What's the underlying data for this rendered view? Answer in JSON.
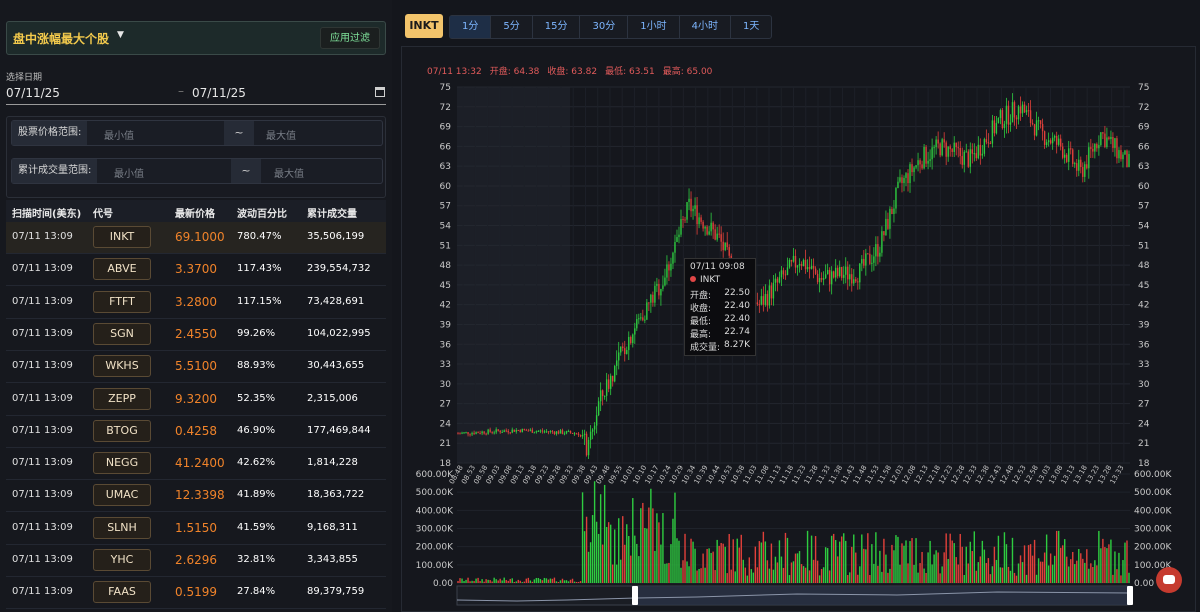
{
  "filter": {
    "title": "盘中涨幅最大个股",
    "apply_label": "应用过滤"
  },
  "date": {
    "label": "选择日期",
    "start": "07/11/25",
    "separator": "–",
    "end": "07/11/25"
  },
  "price_range": {
    "label": "股票价格范围:",
    "min_placeholder": "最小值",
    "tilde": "~",
    "max_placeholder": "最大值"
  },
  "volume_range": {
    "label": "累计成交量范围:",
    "min_placeholder": "最小值",
    "tilde": "~",
    "max_placeholder": "最大值"
  },
  "table": {
    "headers": [
      "扫描时间(美东)",
      "代号",
      "最新价格",
      "波动百分比",
      "累计成交量"
    ],
    "rows": [
      {
        "time": "07/11 13:09",
        "symbol": "INKT",
        "price": "69.1000",
        "pct": "780.47%",
        "volume": "35,506,199"
      },
      {
        "time": "07/11 13:09",
        "symbol": "ABVE",
        "price": "3.3700",
        "pct": "117.43%",
        "volume": "239,554,732"
      },
      {
        "time": "07/11 13:09",
        "symbol": "FTFT",
        "price": "3.2800",
        "pct": "117.15%",
        "volume": "73,428,691"
      },
      {
        "time": "07/11 13:09",
        "symbol": "SGN",
        "price": "2.4550",
        "pct": "99.26%",
        "volume": "104,022,995"
      },
      {
        "time": "07/11 13:09",
        "symbol": "WKHS",
        "price": "5.5100",
        "pct": "88.93%",
        "volume": "30,443,655"
      },
      {
        "time": "07/11 13:09",
        "symbol": "ZEPP",
        "price": "9.3200",
        "pct": "52.35%",
        "volume": "2,315,006"
      },
      {
        "time": "07/11 13:09",
        "symbol": "BTOG",
        "price": "0.4258",
        "pct": "46.90%",
        "volume": "177,469,844"
      },
      {
        "time": "07/11 13:09",
        "symbol": "NEGG",
        "price": "41.2400",
        "pct": "42.62%",
        "volume": "1,814,228"
      },
      {
        "time": "07/11 13:09",
        "symbol": "UMAC",
        "price": "12.3398",
        "pct": "41.89%",
        "volume": "18,363,722"
      },
      {
        "time": "07/11 13:09",
        "symbol": "SLNH",
        "price": "1.5150",
        "pct": "41.59%",
        "volume": "9,168,311"
      },
      {
        "time": "07/11 13:09",
        "symbol": "YHC",
        "price": "2.6296",
        "pct": "32.81%",
        "volume": "3,343,855"
      },
      {
        "time": "07/11 13:09",
        "symbol": "FAAS",
        "price": "0.5199",
        "pct": "27.84%",
        "volume": "89,379,759"
      }
    ]
  },
  "chart_header": {
    "symbol": "INKT",
    "timeframes": [
      "1分",
      "5分",
      "15分",
      "30分",
      "1小时",
      "4小时",
      "1天"
    ],
    "active_timeframe": "1分"
  },
  "ohlc_bar": {
    "time": "07/11 13:32",
    "open": "开盘: 64.38",
    "close": "收盘: 63.82",
    "low": "最低: 63.51",
    "high": "最高: 65.00"
  },
  "tooltip": {
    "time": "07/11 09:08",
    "symbol": "INKT",
    "rows": [
      [
        "开盘:",
        "22.50"
      ],
      [
        "收盘:",
        "22.40"
      ],
      [
        "最低:",
        "22.40"
      ],
      [
        "最高:",
        "22.74"
      ],
      [
        "成交量:",
        "8.27K"
      ]
    ]
  },
  "colors": {
    "up": "#2ecc40",
    "down": "#e0403a",
    "accent": "#f3c46b"
  },
  "chart_data": {
    "type": "candlestick",
    "x_ticks": [
      "08:48",
      "08:53",
      "08:58",
      "09:03",
      "09:08",
      "09:13",
      "09:18",
      "09:23",
      "09:28",
      "09:33",
      "09:38",
      "09:43",
      "09:48",
      "09:55",
      "10:01",
      "10:10",
      "10:17",
      "10:24",
      "10:29",
      "10:34",
      "10:39",
      "10:44",
      "10:53",
      "10:58",
      "11:03",
      "11:08",
      "11:13",
      "11:18",
      "11:23",
      "11:28",
      "11:33",
      "11:38",
      "11:43",
      "11:48",
      "11:53",
      "11:58",
      "12:03",
      "12:08",
      "12:13",
      "12:18",
      "12:23",
      "12:28",
      "12:33",
      "12:38",
      "12:43",
      "12:48",
      "12:53",
      "12:58",
      "13:03",
      "13:08",
      "13:13",
      "13:18",
      "13:23",
      "13:28",
      "13:33"
    ],
    "price_axis": {
      "ticks": [
        18,
        21,
        24,
        27,
        30,
        33,
        36,
        39,
        42,
        45,
        48,
        51,
        54,
        57,
        60,
        63,
        66,
        69,
        72,
        75
      ],
      "ylim": [
        18,
        75
      ]
    },
    "volume_axis": {
      "ticks": [
        "0.00",
        "100.00K",
        "200.00K",
        "300.00K",
        "400.00K",
        "500.00K",
        "600.00K"
      ],
      "ylim": [
        0,
        600000
      ]
    },
    "price_path": [
      [
        0,
        22.5
      ],
      [
        60,
        23
      ],
      [
        120,
        22.5
      ],
      [
        130,
        20
      ],
      [
        140,
        27
      ],
      [
        170,
        37
      ],
      [
        205,
        46
      ],
      [
        230,
        57
      ],
      [
        260,
        52
      ],
      [
        280,
        45
      ],
      [
        300,
        42
      ],
      [
        340,
        49
      ],
      [
        360,
        46
      ],
      [
        400,
        47
      ],
      [
        420,
        51
      ],
      [
        440,
        60
      ],
      [
        460,
        64
      ],
      [
        480,
        66
      ],
      [
        510,
        64
      ],
      [
        540,
        70
      ],
      [
        560,
        72
      ],
      [
        580,
        68
      ],
      [
        600,
        66
      ],
      [
        620,
        62
      ],
      [
        640,
        68
      ],
      [
        670,
        63
      ]
    ],
    "grid": true
  }
}
